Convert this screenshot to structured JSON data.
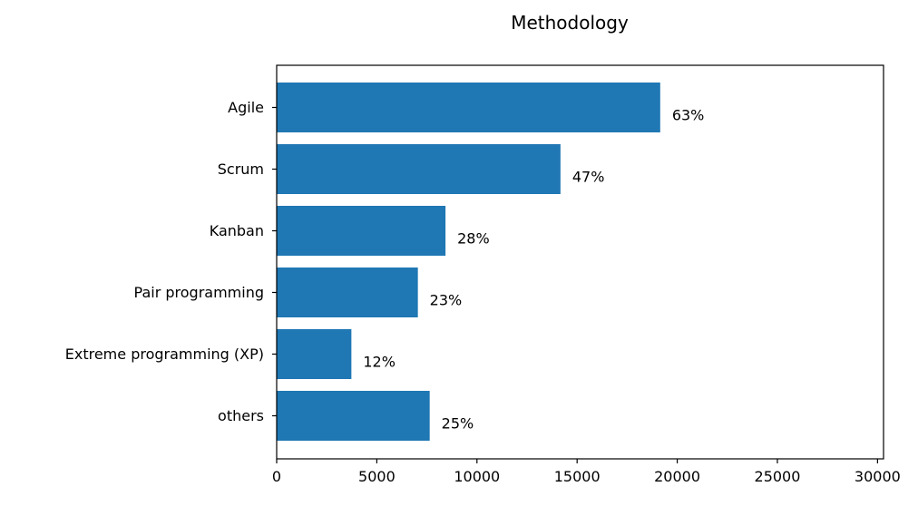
{
  "chart_data": {
    "type": "bar",
    "orientation": "horizontal",
    "title": "Methodology",
    "xlabel": "",
    "ylabel": "",
    "categories": [
      "Agile",
      "Scrum",
      "Kanban",
      "Pair programming",
      "Extreme programming (XP)",
      "others"
    ],
    "values": [
      19150,
      14170,
      8430,
      7050,
      3730,
      7640
    ],
    "data_labels": [
      "63%",
      "47%",
      "28%",
      "23%",
      "12%",
      "25%"
    ],
    "xlim": [
      0,
      30300
    ],
    "xticks": [
      0,
      5000,
      10000,
      15000,
      20000,
      25000,
      30000
    ],
    "bar_color": "#1f77b4",
    "grid": false
  }
}
